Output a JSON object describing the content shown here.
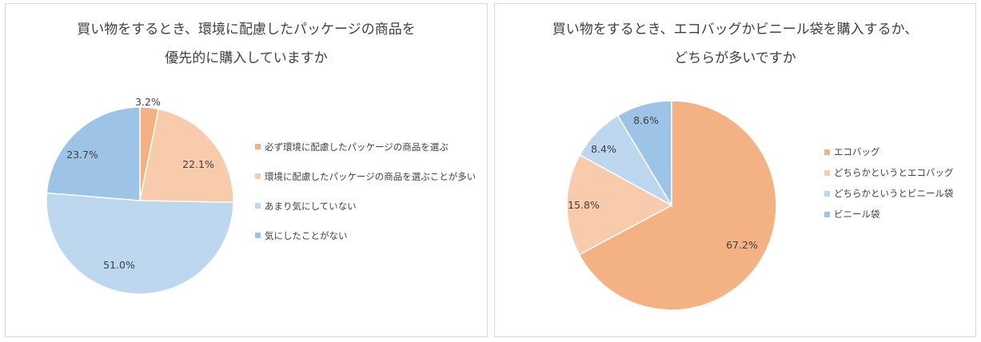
{
  "chart_data": [
    {
      "type": "pie",
      "title_lines": [
        "買い物をするとき、環境に配慮したパッケージの商品を",
        "優先的に購入していますか"
      ],
      "categories": [
        "必ず環境に配慮したパッケージの商品を選ぶ",
        "環境に配慮したパッケージの商品を選ぶことが多い",
        "あまり気にしていない",
        "気にしたことがない"
      ],
      "values": [
        3.2,
        22.1,
        51.0,
        23.7
      ],
      "data_labels": [
        "3.2%",
        "22.1%",
        "51.0%",
        "23.7%"
      ],
      "colors": [
        "#f4b183",
        "#f8cbad",
        "#bdd7ee",
        "#9dc3e6"
      ],
      "legend_position": "right"
    },
    {
      "type": "pie",
      "title_lines": [
        "買い物をするとき、エコバッグかビニール袋を購入するか、",
        "どちらが多いですか"
      ],
      "categories": [
        "エコバッグ",
        "どちらかというとエコバッグ",
        "どちらかというとビニール袋",
        "ビニール袋"
      ],
      "values": [
        67.2,
        15.8,
        8.4,
        8.6
      ],
      "data_labels": [
        "67.2%",
        "15.8%",
        "8.4%",
        "8.6%"
      ],
      "colors": [
        "#f4b183",
        "#f8cbad",
        "#bdd7ee",
        "#9dc3e6"
      ],
      "legend_position": "right"
    }
  ]
}
